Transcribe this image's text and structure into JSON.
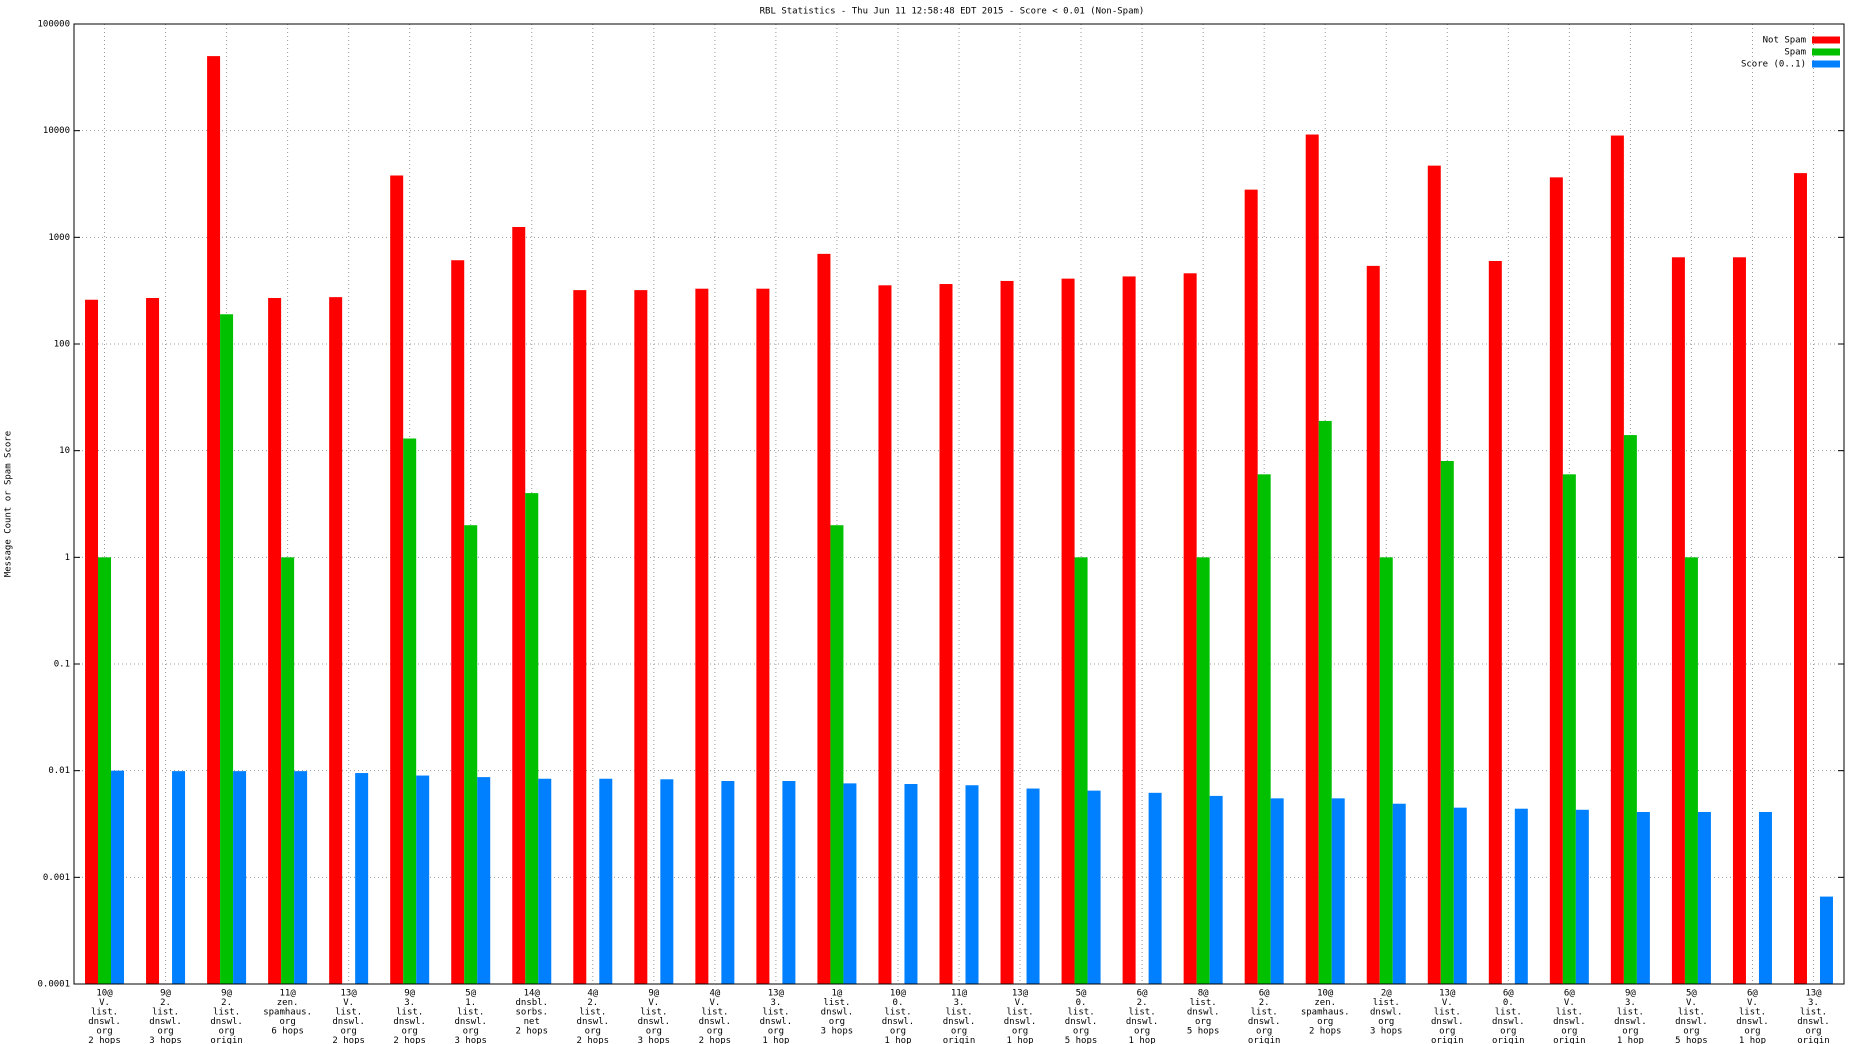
{
  "chart_data": {
    "type": "bar",
    "title": "RBL Statistics - Thu Jun 11 12:58:48 EDT 2015 - Score < 0.01 (Non-Spam)",
    "y_label": "Message Count or Spam Score",
    "log_scale": true,
    "grid": true,
    "legend": "top-right",
    "ylim": [
      0.0001,
      100000
    ],
    "yticks": [
      0.0001,
      0.001,
      0.01,
      0.1,
      1,
      10,
      100,
      1000,
      10000,
      100000
    ],
    "categories": [
      [
        "10@",
        "V.",
        "list.",
        "dnswl.",
        "org",
        "2 hops"
      ],
      [
        "9@",
        "2.",
        "list.",
        "dnswl.",
        "org",
        "3 hops"
      ],
      [
        "9@",
        "2.",
        "list.",
        "dnswl.",
        "org",
        "origin"
      ],
      [
        "11@",
        "zen.",
        "spamhaus.",
        "org",
        "6 hops"
      ],
      [
        "13@",
        "V.",
        "list.",
        "dnswl.",
        "org",
        "2 hops"
      ],
      [
        "9@",
        "3.",
        "list.",
        "dnswl.",
        "org",
        "2 hops"
      ],
      [
        "5@",
        "1.",
        "list.",
        "dnswl.",
        "org",
        "3 hops"
      ],
      [
        "14@",
        "dnsbl.",
        "sorbs.",
        "net",
        "2 hops"
      ],
      [
        "4@",
        "2.",
        "list.",
        "dnswl.",
        "org",
        "2 hops"
      ],
      [
        "9@",
        "V.",
        "list.",
        "dnswl.",
        "org",
        "3 hops"
      ],
      [
        "4@",
        "V.",
        "list.",
        "dnswl.",
        "org",
        "2 hops"
      ],
      [
        "13@",
        "3.",
        "list.",
        "dnswl.",
        "org",
        "1 hop"
      ],
      [
        "1@",
        "list.",
        "dnswl.",
        "org",
        "3 hops"
      ],
      [
        "10@",
        "0.",
        "list.",
        "dnswl.",
        "org",
        "1 hop"
      ],
      [
        "11@",
        "3.",
        "list.",
        "dnswl.",
        "org",
        "origin"
      ],
      [
        "13@",
        "V.",
        "list.",
        "dnswl.",
        "org",
        "1 hop"
      ],
      [
        "5@",
        "0.",
        "list.",
        "dnswl.",
        "org",
        "5 hops"
      ],
      [
        "6@",
        "2.",
        "list.",
        "dnswl.",
        "org",
        "1 hop"
      ],
      [
        "8@",
        "list.",
        "dnswl.",
        "org",
        "5 hops"
      ],
      [
        "6@",
        "2.",
        "list.",
        "dnswl.",
        "org",
        "origin"
      ],
      [
        "10@",
        "zen.",
        "spamhaus.",
        "org",
        "2 hops"
      ],
      [
        "2@",
        "list.",
        "dnswl.",
        "org",
        "3 hops"
      ],
      [
        "13@",
        "V.",
        "list.",
        "dnswl.",
        "org",
        "origin"
      ],
      [
        "6@",
        "0.",
        "list.",
        "dnswl.",
        "org",
        "origin"
      ],
      [
        "6@",
        "V.",
        "list.",
        "dnswl.",
        "org",
        "origin"
      ],
      [
        "9@",
        "3.",
        "list.",
        "dnswl.",
        "org",
        "1 hop"
      ],
      [
        "5@",
        "V.",
        "list.",
        "dnswl.",
        "org",
        "5 hops"
      ],
      [
        "6@",
        "V.",
        "list.",
        "dnswl.",
        "org",
        "1 hop"
      ],
      [
        "13@",
        "3.",
        "list.",
        "dnswl.",
        "org",
        "origin"
      ]
    ],
    "series": [
      {
        "name": "Not Spam",
        "color": "#ff0000",
        "values": [
          260,
          270,
          50000,
          270,
          275,
          3800,
          610,
          1250,
          320,
          320,
          330,
          330,
          700,
          355,
          365,
          390,
          410,
          430,
          460,
          2800,
          9200,
          540,
          4700,
          600,
          3650,
          9000,
          650,
          650,
          4000
        ]
      },
      {
        "name": "Spam",
        "color": "#00c000",
        "values": [
          1,
          null,
          190,
          1,
          null,
          13,
          2,
          4,
          null,
          null,
          null,
          null,
          2,
          null,
          null,
          null,
          1,
          null,
          1,
          6,
          19,
          1,
          8,
          null,
          6,
          14,
          1,
          null,
          null
        ]
      },
      {
        "name": "Score (0..1)",
        "color": "#0080ff",
        "values": [
          0.01,
          0.0099,
          0.0099,
          0.0099,
          0.0095,
          0.009,
          0.0087,
          0.0084,
          0.0084,
          0.0083,
          0.008,
          0.008,
          0.0076,
          0.0075,
          0.0073,
          0.0068,
          0.0065,
          0.0062,
          0.0058,
          0.0055,
          0.0055,
          0.0049,
          0.0045,
          0.0044,
          0.0043,
          0.0041,
          0.0041,
          0.0041,
          0.00066
        ]
      }
    ]
  }
}
